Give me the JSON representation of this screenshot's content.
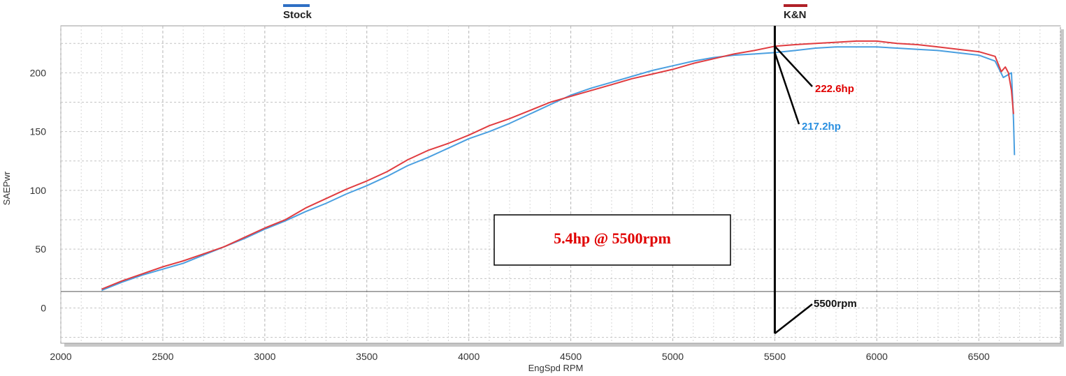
{
  "chart_data": {
    "type": "line",
    "xlabel": "EngSpd RPM",
    "ylabel": "SAEPwr",
    "xlim": [
      2000,
      6900
    ],
    "ylim": [
      -30,
      240
    ],
    "xticks": [
      2000,
      2500,
      3000,
      3500,
      4000,
      4500,
      5000,
      5500,
      6000,
      6500
    ],
    "yticks": [
      0,
      50,
      100,
      150,
      200
    ],
    "grid": true,
    "legend_position": "top",
    "series": [
      {
        "name": "Stock",
        "color": "#4a9fe0",
        "x": [
          2200,
          2300,
          2400,
          2500,
          2600,
          2700,
          2800,
          2900,
          3000,
          3100,
          3200,
          3300,
          3400,
          3500,
          3600,
          3700,
          3800,
          3900,
          4000,
          4100,
          4200,
          4300,
          4400,
          4500,
          4600,
          4700,
          4800,
          4900,
          5000,
          5100,
          5200,
          5300,
          5400,
          5500,
          5600,
          5700,
          5800,
          5900,
          6000,
          6100,
          6200,
          6300,
          6400,
          6500,
          6580,
          6620,
          6640,
          6660,
          6670,
          6675
        ],
        "y": [
          15,
          22,
          28,
          33,
          38,
          45,
          52,
          59,
          67,
          74,
          82,
          89,
          97,
          104,
          112,
          121,
          128,
          136,
          144,
          150,
          157,
          165,
          173,
          181,
          187,
          192,
          197,
          202,
          206,
          210,
          213,
          215,
          216,
          217.2,
          219,
          221,
          222,
          222,
          222,
          221,
          220,
          219,
          217,
          215,
          210,
          196,
          198,
          200,
          160,
          130
        ]
      },
      {
        "name": "K&N",
        "color": "#e03c40",
        "x": [
          2200,
          2300,
          2400,
          2500,
          2600,
          2700,
          2800,
          2900,
          3000,
          3100,
          3200,
          3300,
          3400,
          3500,
          3600,
          3700,
          3800,
          3900,
          4000,
          4100,
          4200,
          4300,
          4400,
          4500,
          4600,
          4700,
          4800,
          4900,
          5000,
          5100,
          5200,
          5300,
          5400,
          5500,
          5600,
          5700,
          5800,
          5900,
          6000,
          6100,
          6200,
          6300,
          6400,
          6500,
          6580,
          6610,
          6630,
          6645,
          6660,
          6670
        ],
        "y": [
          16,
          23,
          29,
          35,
          40,
          46,
          52,
          60,
          68,
          75,
          85,
          93,
          101,
          108,
          116,
          126,
          134,
          140,
          147,
          155,
          161,
          168,
          175,
          180,
          185,
          190,
          195,
          199,
          203,
          208,
          212,
          216,
          219,
          222.6,
          224,
          225,
          226,
          227,
          227,
          225,
          224,
          222,
          220,
          218,
          214,
          201,
          205,
          200,
          185,
          165
        ]
      }
    ],
    "annotations": [
      {
        "text": "222.6hp",
        "x": 5500,
        "y": 222.6,
        "color": "#e00000"
      },
      {
        "text": "217.2hp",
        "x": 5500,
        "y": 217.2,
        "color": "#2a8fe0"
      },
      {
        "text": "5500rpm",
        "x": 5500,
        "color": "#111111"
      },
      {
        "text": "5.4hp @ 5500rpm",
        "color": "#e00000"
      }
    ]
  }
}
